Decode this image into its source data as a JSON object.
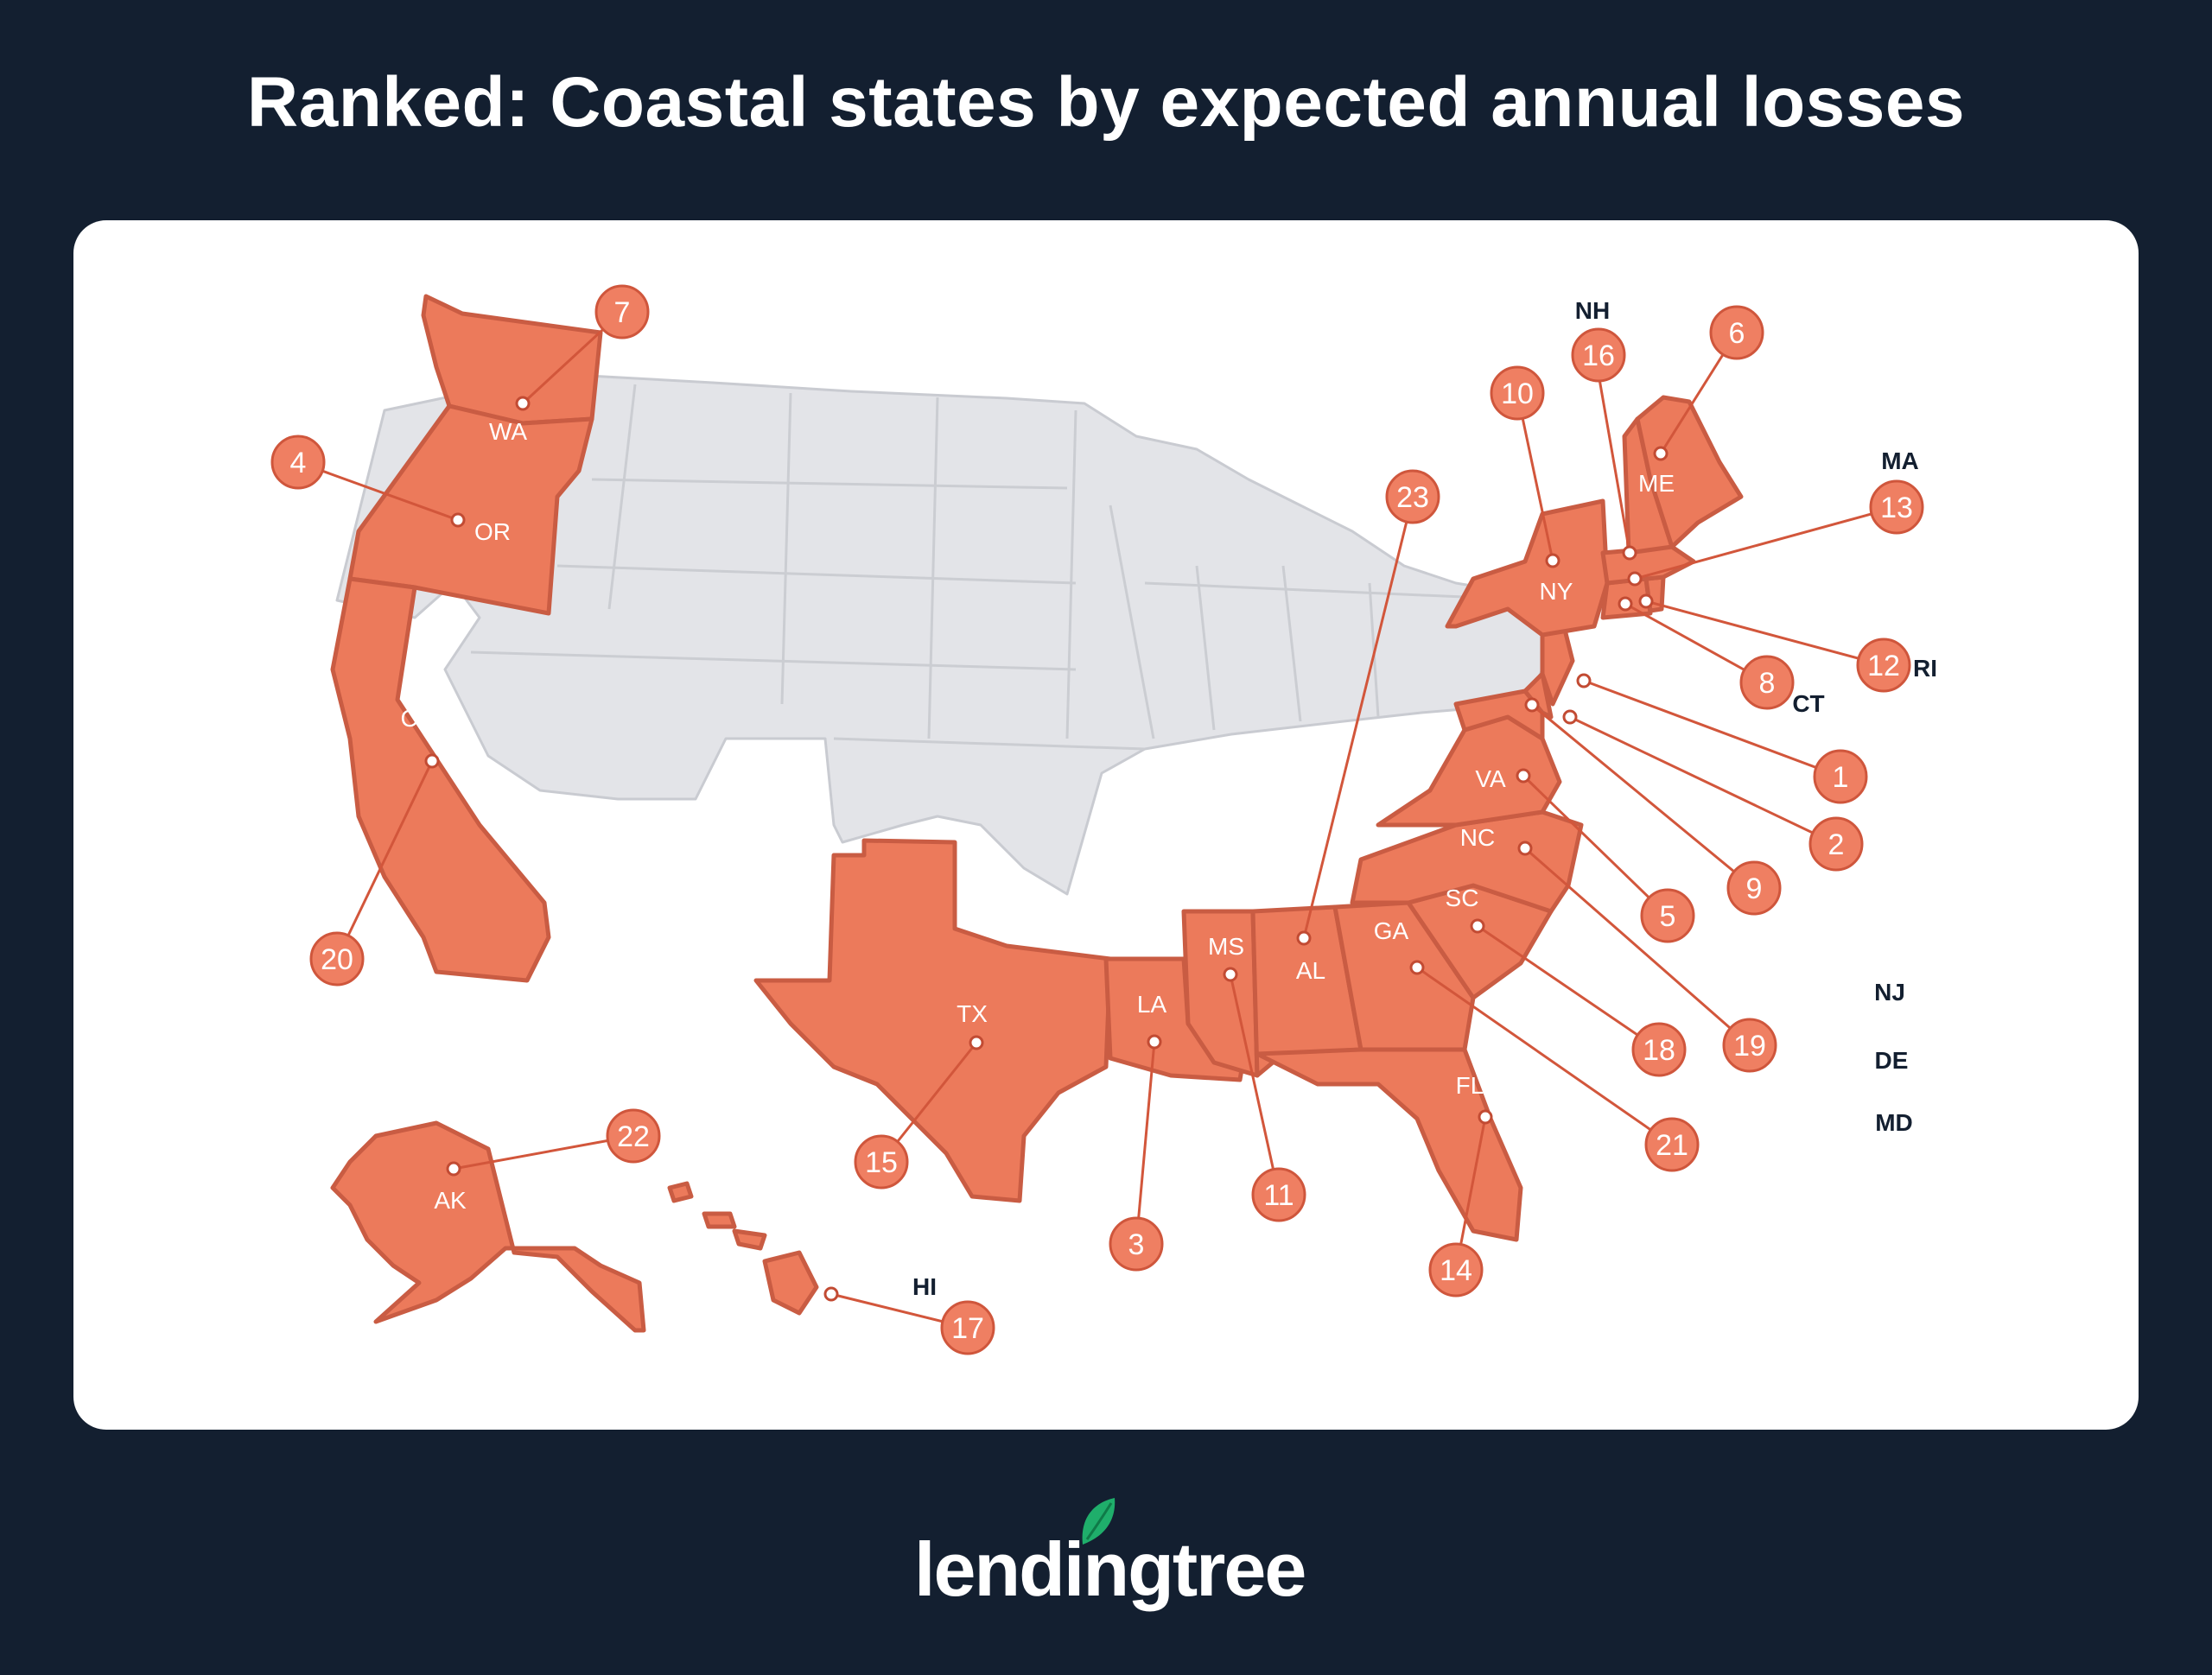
{
  "title": "Ranked: Coastal states by expected annual losses",
  "brand": "lendingtree",
  "colors": {
    "background": "#131f30",
    "coastal_state": "#ec7a5b",
    "other_state": "#e3e4e8",
    "badge": "#ef7f62",
    "logo_leaf": "#1fae6b"
  },
  "map": {
    "states": [
      {
        "abbr": "WA",
        "rank": "7",
        "label": "WA"
      },
      {
        "abbr": "OR",
        "rank": "4",
        "label": "OR"
      },
      {
        "abbr": "CA",
        "rank": "20",
        "label": "CA"
      },
      {
        "abbr": "AK",
        "rank": "22",
        "label": "AK"
      },
      {
        "abbr": "HI",
        "rank": "17",
        "label": "HI"
      },
      {
        "abbr": "TX",
        "rank": "15",
        "label": "TX"
      },
      {
        "abbr": "LA",
        "rank": "3",
        "label": "LA"
      },
      {
        "abbr": "MS",
        "rank": "11",
        "label": "MS"
      },
      {
        "abbr": "AL",
        "rank": "23",
        "label": "AL"
      },
      {
        "abbr": "FL",
        "rank": "14",
        "label": "FL"
      },
      {
        "abbr": "GA",
        "rank": "21",
        "label": "GA"
      },
      {
        "abbr": "SC",
        "rank": "18",
        "label": "SC"
      },
      {
        "abbr": "NC",
        "rank": "19",
        "label": "NC"
      },
      {
        "abbr": "VA",
        "rank": "5",
        "label": "VA"
      },
      {
        "abbr": "MD",
        "rank": "9",
        "label": "MD"
      },
      {
        "abbr": "DE",
        "rank": "2",
        "label": "DE"
      },
      {
        "abbr": "NJ",
        "rank": "1",
        "label": "NJ"
      },
      {
        "abbr": "NY",
        "rank": "10",
        "label": "NY"
      },
      {
        "abbr": "CT",
        "rank": "8",
        "label": "CT"
      },
      {
        "abbr": "RI",
        "rank": "12",
        "label": "RI"
      },
      {
        "abbr": "MA",
        "rank": "13",
        "label": "MA"
      },
      {
        "abbr": "NH",
        "rank": "16",
        "label": "NH"
      },
      {
        "abbr": "ME",
        "rank": "6",
        "label": "ME"
      }
    ]
  }
}
